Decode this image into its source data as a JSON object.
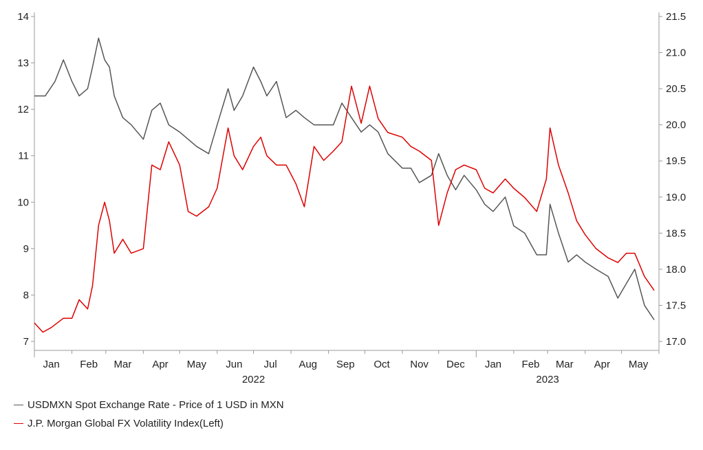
{
  "colors": {
    "usdmxn": "#555555",
    "fx_vol": "#dd0000",
    "axis": "#999999"
  },
  "legend": {
    "usdmxn_label": "USDMXN Spot Exchange Rate - Price of 1 USD in MXN",
    "fx_vol_label": "J.P. Morgan Global FX Volatility Index(Left)"
  },
  "chart_data": {
    "type": "line",
    "title": "",
    "x_start": "2022-01-01",
    "x_end": "2023-06-01",
    "legend_position": "bottom-left",
    "grid": false,
    "x_months": [
      "Jan",
      "Feb",
      "Mar",
      "Apr",
      "May",
      "Jun",
      "Jul",
      "Aug",
      "Sep",
      "Oct",
      "Nov",
      "Dec",
      "Jan",
      "Feb",
      "Mar",
      "Apr",
      "May"
    ],
    "x_years": [
      {
        "label": "2022",
        "month": "2022-07"
      },
      {
        "label": "2023",
        "month": "2023-03"
      }
    ],
    "left_axis": {
      "ylim": [
        7,
        14
      ],
      "ticks": [
        "7",
        "8",
        "9",
        "10",
        "11",
        "12",
        "13",
        "14"
      ]
    },
    "right_axis": {
      "ylim": [
        17.0,
        21.5
      ],
      "ticks": [
        "17.0",
        "17.5",
        "18.0",
        "18.5",
        "19.0",
        "19.5",
        "20.0",
        "20.5",
        "21.0",
        "21.5"
      ]
    },
    "series": [
      {
        "name": "USDMXN Spot Exchange Rate - Price of 1 USD in MXN",
        "axis": "right",
        "x": [
          "2022-01-01",
          "2022-01-10",
          "2022-01-18",
          "2022-01-25",
          "2022-02-01",
          "2022-02-07",
          "2022-02-14",
          "2022-02-18",
          "2022-02-23",
          "2022-02-28",
          "2022-03-04",
          "2022-03-08",
          "2022-03-15",
          "2022-03-22",
          "2022-04-01",
          "2022-04-08",
          "2022-04-15",
          "2022-04-22",
          "2022-05-01",
          "2022-05-08",
          "2022-05-15",
          "2022-05-25",
          "2022-06-01",
          "2022-06-10",
          "2022-06-15",
          "2022-06-22",
          "2022-07-01",
          "2022-07-07",
          "2022-07-12",
          "2022-07-20",
          "2022-07-28",
          "2022-08-05",
          "2022-08-12",
          "2022-08-20",
          "2022-08-28",
          "2022-09-05",
          "2022-09-12",
          "2022-09-20",
          "2022-09-28",
          "2022-10-05",
          "2022-10-12",
          "2022-10-20",
          "2022-11-01",
          "2022-11-08",
          "2022-11-15",
          "2022-11-25",
          "2022-12-01",
          "2022-12-08",
          "2022-12-15",
          "2022-12-22",
          "2023-01-01",
          "2023-01-08",
          "2023-01-15",
          "2023-01-25",
          "2023-02-01",
          "2023-02-10",
          "2023-02-20",
          "2023-02-28",
          "2023-03-03",
          "2023-03-10",
          "2023-03-18",
          "2023-03-25",
          "2023-04-01",
          "2023-04-10",
          "2023-04-20",
          "2023-04-28",
          "2023-05-05",
          "2023-05-12",
          "2023-05-20",
          "2023-05-28"
        ],
        "values": [
          20.4,
          20.4,
          20.6,
          20.9,
          20.6,
          20.4,
          20.5,
          20.8,
          21.2,
          20.9,
          20.8,
          20.4,
          20.1,
          20.0,
          19.8,
          20.2,
          20.3,
          20.0,
          19.9,
          19.8,
          19.7,
          19.6,
          20.0,
          20.5,
          20.2,
          20.4,
          20.8,
          20.6,
          20.4,
          20.6,
          20.1,
          20.2,
          20.1,
          20.0,
          20.0,
          20.0,
          20.3,
          20.1,
          19.9,
          20.0,
          19.9,
          19.6,
          19.4,
          19.4,
          19.2,
          19.3,
          19.6,
          19.3,
          19.1,
          19.3,
          19.1,
          18.9,
          18.8,
          19.0,
          18.6,
          18.5,
          18.2,
          18.2,
          18.9,
          18.5,
          18.1,
          18.2,
          18.1,
          18.0,
          17.9,
          17.6,
          17.8,
          18.0,
          17.5,
          17.3
        ]
      },
      {
        "name": "J.P. Morgan Global FX Volatility Index",
        "axis": "left",
        "x": [
          "2022-01-01",
          "2022-01-08",
          "2022-01-15",
          "2022-01-25",
          "2022-02-01",
          "2022-02-07",
          "2022-02-14",
          "2022-02-18",
          "2022-02-23",
          "2022-02-28",
          "2022-03-04",
          "2022-03-08",
          "2022-03-15",
          "2022-03-22",
          "2022-04-01",
          "2022-04-08",
          "2022-04-15",
          "2022-04-22",
          "2022-05-01",
          "2022-05-08",
          "2022-05-15",
          "2022-05-25",
          "2022-06-01",
          "2022-06-10",
          "2022-06-15",
          "2022-06-22",
          "2022-07-01",
          "2022-07-07",
          "2022-07-12",
          "2022-07-20",
          "2022-07-28",
          "2022-08-05",
          "2022-08-12",
          "2022-08-20",
          "2022-08-28",
          "2022-09-05",
          "2022-09-12",
          "2022-09-20",
          "2022-09-28",
          "2022-10-05",
          "2022-10-12",
          "2022-10-20",
          "2022-11-01",
          "2022-11-08",
          "2022-11-15",
          "2022-11-25",
          "2022-12-01",
          "2022-12-08",
          "2022-12-15",
          "2022-12-22",
          "2023-01-01",
          "2023-01-08",
          "2023-01-15",
          "2023-01-25",
          "2023-02-01",
          "2023-02-10",
          "2023-02-20",
          "2023-02-28",
          "2023-03-03",
          "2023-03-10",
          "2023-03-18",
          "2023-03-25",
          "2023-04-01",
          "2023-04-10",
          "2023-04-20",
          "2023-04-28",
          "2023-05-05",
          "2023-05-12",
          "2023-05-20",
          "2023-05-28"
        ],
        "values": [
          7.4,
          7.2,
          7.3,
          7.5,
          7.5,
          7.9,
          7.7,
          8.2,
          9.5,
          10.0,
          9.6,
          8.9,
          9.2,
          8.9,
          9.0,
          10.8,
          10.7,
          11.3,
          10.8,
          9.8,
          9.7,
          9.9,
          10.3,
          11.6,
          11.0,
          10.7,
          11.2,
          11.4,
          11.0,
          10.8,
          10.8,
          10.4,
          9.9,
          11.2,
          10.9,
          11.1,
          11.3,
          12.5,
          11.7,
          12.5,
          11.8,
          11.5,
          11.4,
          11.2,
          11.1,
          10.9,
          9.5,
          10.2,
          10.7,
          10.8,
          10.7,
          10.3,
          10.2,
          10.5,
          10.3,
          10.1,
          9.8,
          10.5,
          11.6,
          10.8,
          10.2,
          9.6,
          9.3,
          9.0,
          8.8,
          8.7,
          8.9,
          8.9,
          8.4,
          8.1
        ]
      }
    ]
  }
}
